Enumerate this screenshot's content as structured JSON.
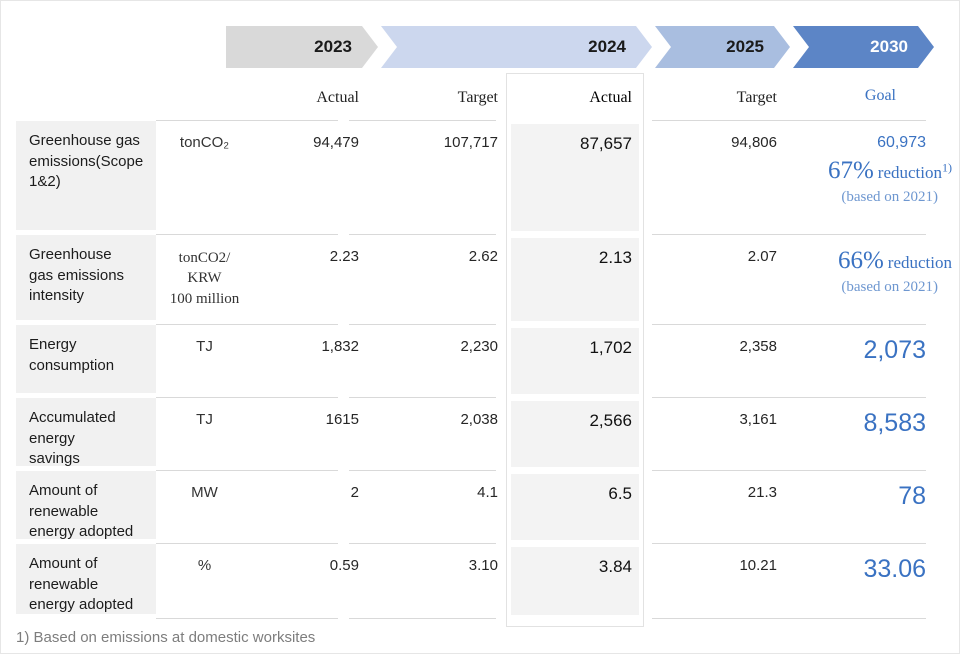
{
  "colors": {
    "accent_blue": "#3a72c2",
    "light_blue_text": "#6e97d0",
    "banner_2023": "#d9d9d9",
    "banner_2024": "#ccd7ee",
    "banner_2025": "#a9bee0",
    "banner_2030": "#5c85c6",
    "label_cell_bg": "#f1f1f1",
    "highlight_cell_bg": "#f3f3f3"
  },
  "banner": {
    "years": [
      {
        "label": "2023"
      },
      {
        "label": "2024"
      },
      {
        "label": "2025"
      },
      {
        "label": "2030"
      }
    ]
  },
  "header": {
    "col_2023_actual": "Actual",
    "col_2023_target": "Target",
    "col_2024_actual": "Actual",
    "col_2025_target": "Target",
    "col_2030_goal": "Goal"
  },
  "rows": [
    {
      "label": "Greenhouse gas\nemissions(Scope\n1&2)",
      "unit": "tonCO₂",
      "actual_2023": "94,479",
      "target_2023": "107,717",
      "actual_2024": "87,657",
      "target_2025": "94,806",
      "goal": {
        "value": "60,973",
        "reduction_pct": "67%",
        "reduction_word": "reduction",
        "footnote_ref": "1)",
        "basis": "(based on 2021)"
      }
    },
    {
      "label": "Greenhouse\ngas emissions\nintensity",
      "unit": "tonCO2/\nKRW\n100 million",
      "actual_2023": "2.23",
      "target_2023": "2.62",
      "actual_2024": "2.13",
      "target_2025": "2.07",
      "goal": {
        "reduction_pct": "66%",
        "reduction_word": "reduction",
        "basis": "(based on 2021)"
      }
    },
    {
      "label": "Energy\nconsumption",
      "unit": "TJ",
      "actual_2023": "1,832",
      "target_2023": "2,230",
      "actual_2024": "1,702",
      "target_2025": "2,358",
      "goal": {
        "value": "2,073"
      }
    },
    {
      "label": "Accumulated\nenergy\nsavings",
      "unit": "TJ",
      "actual_2023": "1615",
      "target_2023": "2,038",
      "actual_2024": "2,566",
      "target_2025": "3,161",
      "goal": {
        "value": "8,583"
      }
    },
    {
      "label": "Amount of\nrenewable\nenergy adopted",
      "unit": "MW",
      "actual_2023": "2",
      "target_2023": "4.1",
      "actual_2024": "6.5",
      "target_2025": "21.3",
      "goal": {
        "value": "78"
      }
    },
    {
      "label": "Amount of\nrenewable\nenergy adopted",
      "unit": "%",
      "actual_2023": "0.59",
      "target_2023": "3.10",
      "actual_2024": "3.84",
      "target_2025": "10.21",
      "goal": {
        "value": "33.06"
      }
    }
  ],
  "footnote": "1) Based on emissions at domestic worksites"
}
